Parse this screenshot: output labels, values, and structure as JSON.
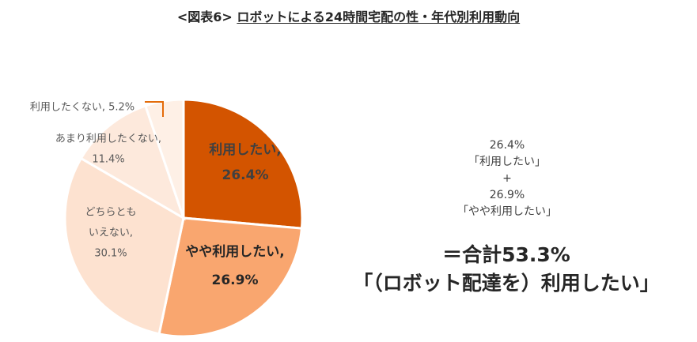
{
  "header": {
    "prefix": "<図表6>",
    "title": "ロボットによる24時間宅配の性・年代別利用動向"
  },
  "chart_data": {
    "type": "pie",
    "slices": [
      {
        "label_lines": [
          "利用したい,",
          "26.4%"
        ],
        "value": 26.4,
        "color": "#D35400",
        "text_color": "#404040",
        "bold": true
      },
      {
        "label_lines": [
          "やや利用したい,",
          "26.9%"
        ],
        "value": 26.9,
        "color": "#F9A66F",
        "text_color": "#262626",
        "bold": true
      },
      {
        "label_lines": [
          "どちらとも",
          "いえない,",
          "30.1%"
        ],
        "value": 30.1,
        "color": "#FDE2D0",
        "text_color": "#595959",
        "bold": false
      },
      {
        "label_lines": [
          "あまり利用したくない,",
          "11.4%"
        ],
        "value": 11.4,
        "color": "#FDE9DC",
        "text_color": "#595959",
        "bold": false
      },
      {
        "label_lines": [
          "利用したくない, 5.2%"
        ],
        "value": 5.2,
        "color": "#FEF0E6",
        "text_color": "#595959",
        "bold": false
      }
    ],
    "start_angle_deg": 0,
    "direction": "clockwise",
    "leader_line_color": "#E46C0A"
  },
  "annotation": {
    "lines": [
      "26.4%",
      "「利用したい」",
      "+",
      "26.9%",
      "「やや利用したい」"
    ],
    "total_line1": "＝合計53.3%",
    "total_line2": "「（ロボット配達を）利用したい」"
  }
}
